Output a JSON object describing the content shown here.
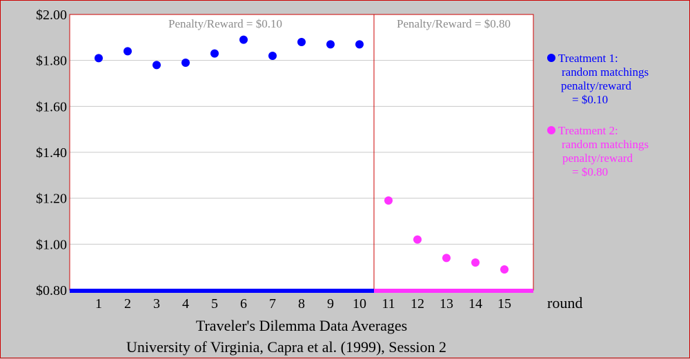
{
  "chart_data": {
    "type": "scatter",
    "x": [
      1,
      2,
      3,
      4,
      5,
      6,
      7,
      8,
      9,
      10,
      11,
      12,
      13,
      14,
      15
    ],
    "xlim": [
      0,
      16
    ],
    "ylim": [
      0.8,
      2.0
    ],
    "y_ticks": [
      "$0.80",
      "$1.00",
      "$1.20",
      "$1.40",
      "$1.60",
      "$1.80",
      "$2.00"
    ],
    "x_ticks": [
      "1",
      "2",
      "3",
      "4",
      "5",
      "6",
      "7",
      "8",
      "9",
      "10",
      "11",
      "12",
      "13",
      "14",
      "15"
    ],
    "xlabel": "round",
    "grid": true,
    "panels": [
      {
        "label": "Penalty/Reward = $0.10",
        "from": 1,
        "to": 10
      },
      {
        "label": "Penalty/Reward = $0.80",
        "from": 11,
        "to": 15
      }
    ],
    "series": [
      {
        "name": "Treatment 1",
        "color": "#0000ff",
        "x": [
          1,
          2,
          3,
          4,
          5,
          6,
          7,
          8,
          9,
          10
        ],
        "values": [
          1.81,
          1.84,
          1.78,
          1.79,
          1.83,
          1.89,
          1.82,
          1.88,
          1.87,
          1.87
        ]
      },
      {
        "name": "Treatment 2",
        "color": "#ff33ff",
        "x": [
          11,
          12,
          13,
          14,
          15
        ],
        "values": [
          1.19,
          1.02,
          0.94,
          0.92,
          0.89
        ]
      }
    ],
    "legend": [
      {
        "lines": [
          "Treatment 1:",
          "random matchings",
          "penalty/reward",
          "= $0.10"
        ],
        "color": "#0000ff"
      },
      {
        "lines": [
          "Treatment 2:",
          "random matchings",
          "penalty/reward",
          "= $0.80"
        ],
        "color": "#ff33ff"
      }
    ],
    "footer": [
      "Traveler's Dilemma Data Averages",
      "University of Virginia, Capra et al. (1999), Session 2"
    ]
  }
}
